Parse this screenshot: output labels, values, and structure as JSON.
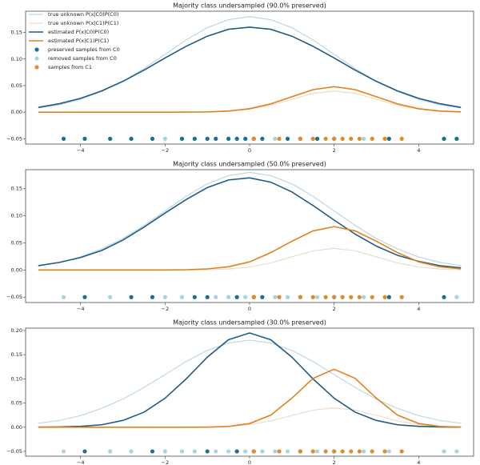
{
  "chart_data": [
    {
      "type": "line",
      "title": "Majority class undersampled (90.0% preserved)",
      "legend": "upper left",
      "xlim": [
        -5.3,
        5.3
      ],
      "ylim": [
        -0.06,
        0.19
      ],
      "xticks": [
        {
          "value": -4,
          "label": "−4"
        },
        {
          "value": -2,
          "label": "−2"
        },
        0,
        2,
        4
      ],
      "yticks": [
        {
          "value": -0.05,
          "label": "−0.05"
        },
        {
          "value": 0,
          "label": "0.00"
        },
        {
          "value": 0.05,
          "label": "0.05"
        },
        {
          "value": 0.1,
          "label": "0.10"
        },
        {
          "value": 0.15,
          "label": "0.15"
        }
      ],
      "x": [
        -5,
        -4.5,
        -4,
        -3.5,
        -3,
        -2.5,
        -2,
        -1.5,
        -1,
        -0.5,
        0,
        0.5,
        1,
        1.5,
        2,
        2.5,
        3,
        3.5,
        4,
        4.5,
        5
      ],
      "series": [
        {
          "name": "true unknown P(x|C0)P(C0)",
          "color": "#bcd8e4",
          "values": [
            0.008,
            0.014,
            0.024,
            0.039,
            0.058,
            0.082,
            0.109,
            0.136,
            0.159,
            0.174,
            0.18,
            0.174,
            0.159,
            0.136,
            0.109,
            0.082,
            0.058,
            0.039,
            0.024,
            0.014,
            0.008
          ]
        },
        {
          "name": "true unknown P(x|C1)P(C1)",
          "color": "#efdcc8",
          "values": [
            0,
            0,
            0,
            0,
            0,
            0,
            0,
            0.0001,
            0.0004,
            0.0018,
            0.0054,
            0.013,
            0.0243,
            0.0353,
            0.04,
            0.0353,
            0.0243,
            0.013,
            0.0054,
            0.0018,
            0.0004
          ]
        },
        {
          "name": "estimated P(x|C0)P(C0)",
          "color": "#1f5b84",
          "values": [
            0.009,
            0.016,
            0.026,
            0.04,
            0.058,
            0.079,
            0.102,
            0.124,
            0.143,
            0.156,
            0.16,
            0.156,
            0.143,
            0.124,
            0.102,
            0.079,
            0.058,
            0.04,
            0.026,
            0.016,
            0.009
          ]
        },
        {
          "name": "estimated P(x|C1)P(C1)",
          "color": "#e0821c",
          "values": [
            0,
            0,
            0,
            0,
            0,
            0,
            0,
            0.0001,
            0.0005,
            0.0021,
            0.0065,
            0.0156,
            0.0291,
            0.0424,
            0.048,
            0.0424,
            0.0291,
            0.0156,
            0.0065,
            0.0021,
            0.0005
          ]
        },
        {
          "type": "scatter",
          "name": "preserved samples from C0",
          "color": "#1f6e8c",
          "x": [
            -4.4,
            -3.9,
            -3.3,
            -2.8,
            -2.3,
            -1.6,
            -1.3,
            -1.0,
            -0.8,
            -0.5,
            -0.3,
            -0.1,
            0.1,
            0.3,
            0.9,
            1.2,
            1.6,
            2.0,
            3.3,
            4.6,
            4.9
          ],
          "values": [
            -0.05,
            -0.05,
            -0.05,
            -0.05,
            -0.05,
            -0.05,
            -0.05,
            -0.05,
            -0.05,
            -0.05,
            -0.05,
            -0.05,
            -0.05,
            -0.05,
            -0.05,
            -0.05,
            -0.05,
            -0.05,
            -0.05,
            -0.05,
            -0.05
          ]
        },
        {
          "type": "scatter",
          "name": "removed samples from C0",
          "color": "#a9d3e0",
          "x": [
            -2.0,
            0.6,
            2.7
          ],
          "values": [
            -0.05,
            -0.05,
            -0.05
          ]
        },
        {
          "type": "scatter",
          "name": "samples from C1",
          "color": "#e08b2e",
          "x": [
            0.1,
            0.7,
            1.2,
            1.5,
            1.8,
            2.0,
            2.2,
            2.4,
            2.6,
            2.9,
            3.2,
            3.6
          ],
          "values": [
            -0.05,
            -0.05,
            -0.05,
            -0.05,
            -0.05,
            -0.05,
            -0.05,
            -0.05,
            -0.05,
            -0.05,
            -0.05,
            -0.05
          ]
        }
      ]
    },
    {
      "type": "line",
      "title": "Majority class undersampled (50.0% preserved)",
      "xlim": [
        -5.3,
        5.3
      ],
      "ylim": [
        -0.06,
        0.185
      ],
      "xticks": [
        {
          "value": -4,
          "label": "−4"
        },
        {
          "value": -2,
          "label": "−2"
        },
        0,
        2,
        4
      ],
      "yticks": [
        {
          "value": -0.05,
          "label": "−0.05"
        },
        {
          "value": 0,
          "label": "0.00"
        },
        {
          "value": 0.05,
          "label": "0.05"
        },
        {
          "value": 0.1,
          "label": "0.10"
        },
        {
          "value": 0.15,
          "label": "0.15"
        }
      ],
      "x": [
        -5,
        -4.5,
        -4,
        -3.5,
        -3,
        -2.5,
        -2,
        -1.5,
        -1,
        -0.5,
        0,
        0.5,
        1,
        1.5,
        2,
        2.5,
        3,
        3.5,
        4,
        4.5,
        5
      ],
      "series": [
        {
          "color": "#bcd8e4",
          "values": [
            0.008,
            0.014,
            0.024,
            0.039,
            0.058,
            0.082,
            0.109,
            0.136,
            0.159,
            0.174,
            0.18,
            0.174,
            0.159,
            0.136,
            0.109,
            0.082,
            0.058,
            0.039,
            0.024,
            0.014,
            0.008
          ]
        },
        {
          "color": "#efdcc8",
          "values": [
            0,
            0,
            0,
            0,
            0,
            0,
            0,
            0.0001,
            0.0004,
            0.0018,
            0.0054,
            0.013,
            0.0243,
            0.0353,
            0.04,
            0.0353,
            0.0243,
            0.013,
            0.0054,
            0.0018,
            0.0004
          ]
        },
        {
          "color": "#1f5b84",
          "values": [
            0.008,
            0.014,
            0.023,
            0.036,
            0.055,
            0.079,
            0.105,
            0.13,
            0.152,
            0.166,
            0.17,
            0.162,
            0.144,
            0.119,
            0.092,
            0.066,
            0.044,
            0.027,
            0.016,
            0.008,
            0.004
          ]
        },
        {
          "color": "#e0821c",
          "values": [
            0,
            0,
            0,
            0,
            0,
            0,
            0.0001,
            0.0005,
            0.002,
            0.006,
            0.015,
            0.032,
            0.053,
            0.072,
            0.08,
            0.072,
            0.053,
            0.032,
            0.015,
            0.006,
            0.002
          ]
        },
        {
          "type": "scatter",
          "color": "#1f6e8c",
          "x": [
            -3.9,
            -2.8,
            -2.3,
            -1.3,
            -1.0,
            -0.3,
            0.1,
            0.3,
            1.2,
            2.0,
            3.3,
            4.6
          ],
          "values": [
            -0.05,
            -0.05,
            -0.05,
            -0.05,
            -0.05,
            -0.05,
            -0.05,
            -0.05,
            -0.05,
            -0.05,
            -0.05,
            -0.05
          ]
        },
        {
          "type": "scatter",
          "color": "#a9d3e0",
          "x": [
            -4.4,
            -3.3,
            -2.0,
            -1.6,
            -0.8,
            -0.5,
            -0.1,
            0.6,
            0.9,
            1.6,
            2.7,
            4.9
          ],
          "values": [
            -0.05,
            -0.05,
            -0.05,
            -0.05,
            -0.05,
            -0.05,
            -0.05,
            -0.05,
            -0.05,
            -0.05,
            -0.05,
            -0.05
          ]
        },
        {
          "type": "scatter",
          "color": "#e08b2e",
          "x": [
            0.1,
            0.7,
            1.2,
            1.5,
            1.8,
            2.0,
            2.2,
            2.4,
            2.6,
            2.9,
            3.2,
            3.6
          ],
          "values": [
            -0.05,
            -0.05,
            -0.05,
            -0.05,
            -0.05,
            -0.05,
            -0.05,
            -0.05,
            -0.05,
            -0.05,
            -0.05,
            -0.05
          ]
        }
      ]
    },
    {
      "type": "line",
      "title": "Majority class undersampled (30.0% preserved)",
      "xlim": [
        -5.3,
        5.3
      ],
      "ylim": [
        -0.06,
        0.205
      ],
      "xticks": [
        {
          "value": -4,
          "label": "−4"
        },
        {
          "value": -2,
          "label": "−2"
        },
        0,
        2,
        4
      ],
      "yticks": [
        {
          "value": -0.05,
          "label": "−0.05"
        },
        {
          "value": 0,
          "label": "0.00"
        },
        {
          "value": 0.05,
          "label": "0.05"
        },
        {
          "value": 0.1,
          "label": "0.10"
        },
        {
          "value": 0.15,
          "label": "0.15"
        },
        {
          "value": 0.2,
          "label": "0.20"
        }
      ],
      "x": [
        -5,
        -4.5,
        -4,
        -3.5,
        -3,
        -2.5,
        -2,
        -1.5,
        -1,
        -0.5,
        0,
        0.5,
        1,
        1.5,
        2,
        2.5,
        3,
        3.5,
        4,
        4.5,
        5
      ],
      "series": [
        {
          "color": "#bcd8e4",
          "values": [
            0.008,
            0.014,
            0.024,
            0.039,
            0.058,
            0.082,
            0.109,
            0.136,
            0.159,
            0.174,
            0.18,
            0.174,
            0.159,
            0.136,
            0.109,
            0.082,
            0.058,
            0.039,
            0.024,
            0.014,
            0.008
          ]
        },
        {
          "color": "#efdcc8",
          "values": [
            0,
            0,
            0,
            0,
            0,
            0,
            0,
            0.0001,
            0.0004,
            0.0018,
            0.0054,
            0.013,
            0.0243,
            0.0353,
            0.04,
            0.0353,
            0.0243,
            0.013,
            0.0054,
            0.0018,
            0.0004
          ]
        },
        {
          "color": "#1f5b84",
          "values": [
            0.0001,
            0.0005,
            0.0018,
            0.005,
            0.014,
            0.031,
            0.06,
            0.1,
            0.145,
            0.181,
            0.195,
            0.181,
            0.145,
            0.1,
            0.06,
            0.031,
            0.014,
            0.005,
            0.0018,
            0.0005,
            0.0001
          ]
        },
        {
          "color": "#e0821c",
          "values": [
            0,
            0,
            0,
            0,
            0,
            0,
            0,
            0,
            0.0002,
            0.0016,
            0.0076,
            0.025,
            0.06,
            0.101,
            0.12,
            0.101,
            0.06,
            0.025,
            0.0076,
            0.0016,
            0.0002
          ]
        },
        {
          "type": "scatter",
          "color": "#1f6e8c",
          "x": [
            -3.9,
            -2.3,
            -1.0,
            -0.3,
            0.1,
            1.2,
            2.0
          ],
          "values": [
            -0.05,
            -0.05,
            -0.05,
            -0.05,
            -0.05,
            -0.05,
            -0.05
          ]
        },
        {
          "type": "scatter",
          "color": "#a9d3e0",
          "x": [
            -4.4,
            -3.3,
            -2.8,
            -2.0,
            -1.6,
            -1.3,
            -0.8,
            -0.5,
            -0.1,
            0.3,
            0.6,
            0.9,
            1.6,
            2.7,
            3.3,
            4.6,
            4.9
          ],
          "values": [
            -0.05,
            -0.05,
            -0.05,
            -0.05,
            -0.05,
            -0.05,
            -0.05,
            -0.05,
            -0.05,
            -0.05,
            -0.05,
            -0.05,
            -0.05,
            -0.05,
            -0.05,
            -0.05,
            -0.05
          ]
        },
        {
          "type": "scatter",
          "color": "#e08b2e",
          "x": [
            0.1,
            0.7,
            1.2,
            1.5,
            1.8,
            2.0,
            2.2,
            2.4,
            2.6,
            2.9,
            3.2,
            3.6
          ],
          "values": [
            -0.05,
            -0.05,
            -0.05,
            -0.05,
            -0.05,
            -0.05,
            -0.05,
            -0.05,
            -0.05,
            -0.05,
            -0.05,
            -0.05
          ]
        }
      ]
    }
  ]
}
